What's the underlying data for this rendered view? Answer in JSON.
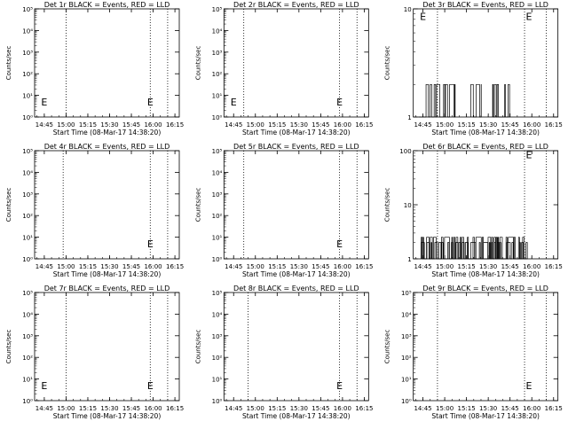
{
  "figure": {
    "background": "#ffffff",
    "foreground": "#000000",
    "event_color": "#000000",
    "lld_color": "#ff0000"
  },
  "chart_data": [
    {
      "type": "line",
      "title": "Det 1r BLACK = Events, RED = LLD",
      "xlabel": "Start Time (08-Mar-17 14:38:20)",
      "ylabel": "Counts/sec",
      "x_ticks": [
        "14:45",
        "15:00",
        "15:15",
        "15:30",
        "15:45",
        "16:00",
        "16:15"
      ],
      "y_scale": "log",
      "y_ticks": [
        {
          "value": 1,
          "label": "10⁰"
        },
        {
          "value": 10,
          "label": "10¹"
        },
        {
          "value": 100,
          "label": "10²"
        },
        {
          "value": 1000,
          "label": "10³"
        },
        {
          "value": 10000,
          "label": "10⁴"
        },
        {
          "value": 100000,
          "label": "10⁵"
        }
      ],
      "dotted_lines": [
        "15:00",
        "15:58",
        "16:10"
      ],
      "markers": [
        {
          "label": "E",
          "x": "14:45",
          "y": 5
        },
        {
          "label": "E",
          "x": "15:58",
          "y": 5
        }
      ],
      "series": []
    },
    {
      "type": "line",
      "title": "Det 2r BLACK = Events, RED = LLD",
      "xlabel": "Start Time (08-Mar-17 14:38:20)",
      "ylabel": "Counts/sec",
      "x_ticks": [
        "14:45",
        "15:00",
        "15:15",
        "15:30",
        "15:45",
        "16:00",
        "16:15"
      ],
      "y_scale": "log",
      "y_ticks": [
        {
          "value": 1,
          "label": "10⁰"
        },
        {
          "value": 10,
          "label": "10¹"
        },
        {
          "value": 100,
          "label": "10²"
        },
        {
          "value": 1000,
          "label": "10³"
        },
        {
          "value": 10000,
          "label": "10⁴"
        },
        {
          "value": 100000,
          "label": "10⁵"
        }
      ],
      "dotted_lines": [
        "14:52",
        "15:58",
        "16:10"
      ],
      "markers": [
        {
          "label": "E",
          "x": "14:45",
          "y": 5
        },
        {
          "label": "E",
          "x": "15:58",
          "y": 5
        }
      ],
      "series": []
    },
    {
      "type": "line",
      "title": "Det 3r BLACK = Events, RED = LLD",
      "xlabel": "Start Time (08-Mar-17 14:38:20)",
      "ylabel": "Counts/sec",
      "x_ticks": [
        "14:45",
        "15:00",
        "15:15",
        "15:30",
        "15:45",
        "16:00",
        "16:15"
      ],
      "y_scale": "log",
      "y_ticks": [
        {
          "value": 1,
          "label": "1"
        },
        {
          "value": 10,
          "label": "10"
        }
      ],
      "dotted_lines": [
        "14:55",
        "15:55",
        "16:10"
      ],
      "markers": [
        {
          "label": "E",
          "x": "14:45",
          "y": 8.5
        },
        {
          "label": "E",
          "x": "15:58",
          "y": 8.5
        }
      ],
      "series": [
        {
          "style": "noise",
          "range": [
            14.7,
            15.12
          ],
          "low": 1,
          "high": 2,
          "seed": 3
        },
        {
          "style": "noise",
          "range": [
            15.3,
            15.42
          ],
          "low": 1,
          "high": 2,
          "seed": 5
        },
        {
          "style": "noise",
          "range": [
            15.55,
            15.75
          ],
          "low": 1,
          "high": 2,
          "seed": 7
        }
      ]
    },
    {
      "type": "line",
      "title": "Det 4r BLACK = Events, RED = LLD",
      "xlabel": "Start Time (08-Mar-17 14:38:20)",
      "ylabel": "Counts/sec",
      "x_ticks": [
        "14:45",
        "15:00",
        "15:15",
        "15:30",
        "15:45",
        "16:00",
        "16:15"
      ],
      "y_scale": "log",
      "y_ticks": [
        {
          "value": 1,
          "label": "10⁰"
        },
        {
          "value": 10,
          "label": "10¹"
        },
        {
          "value": 100,
          "label": "10²"
        },
        {
          "value": 1000,
          "label": "10³"
        },
        {
          "value": 10000,
          "label": "10⁴"
        },
        {
          "value": 100000,
          "label": "10⁵"
        }
      ],
      "dotted_lines": [
        "14:58",
        "15:58",
        "16:10"
      ],
      "markers": [
        {
          "label": "E",
          "x": "15:58",
          "y": 5
        }
      ],
      "series": []
    },
    {
      "type": "line",
      "title": "Det 5r BLACK = Events, RED = LLD",
      "xlabel": "Start Time (08-Mar-17 14:38:20)",
      "ylabel": "Counts/sec",
      "x_ticks": [
        "14:45",
        "15:00",
        "15:15",
        "15:30",
        "15:45",
        "16:00",
        "16:15"
      ],
      "y_scale": "log",
      "y_ticks": [
        {
          "value": 1,
          "label": "10⁰"
        },
        {
          "value": 10,
          "label": "10¹"
        },
        {
          "value": 100,
          "label": "10²"
        },
        {
          "value": 1000,
          "label": "10³"
        },
        {
          "value": 10000,
          "label": "10⁴"
        },
        {
          "value": 100000,
          "label": "10⁵"
        }
      ],
      "dotted_lines": [
        "14:52",
        "15:58",
        "16:10"
      ],
      "markers": [
        {
          "label": "E",
          "x": "15:58",
          "y": 5
        }
      ],
      "series": []
    },
    {
      "type": "line",
      "title": "Det 6r BLACK = Events, RED = LLD",
      "xlabel": "Start Time (08-Mar-17 14:38:20)",
      "ylabel": "Counts/sec",
      "x_ticks": [
        "14:45",
        "15:00",
        "15:15",
        "15:30",
        "15:45",
        "16:00",
        "16:15"
      ],
      "y_scale": "log",
      "y_ticks": [
        {
          "value": 1,
          "label": "1"
        },
        {
          "value": 10,
          "label": "10"
        },
        {
          "value": 100,
          "label": "100"
        }
      ],
      "dotted_lines": [
        "14:55",
        "15:55",
        "16:10"
      ],
      "markers": [
        {
          "label": "E",
          "x": "15:58",
          "y": 85
        }
      ],
      "series": [
        {
          "style": "noise",
          "range": [
            14.73,
            15.95
          ],
          "low": 1,
          "high": 2.5,
          "seed": 11
        },
        {
          "style": "noise",
          "range": [
            14.73,
            15.95
          ],
          "low": 1,
          "high": 2,
          "seed": 13
        }
      ]
    },
    {
      "type": "line",
      "title": "Det 7r BLACK = Events, RED = LLD",
      "xlabel": "Start Time (08-Mar-17 14:38:20)",
      "ylabel": "Counts/sec",
      "x_ticks": [
        "14:45",
        "15:00",
        "15:15",
        "15:30",
        "15:45",
        "16:00",
        "16:15"
      ],
      "y_scale": "log",
      "y_ticks": [
        {
          "value": 1,
          "label": "10⁰"
        },
        {
          "value": 10,
          "label": "10¹"
        },
        {
          "value": 100,
          "label": "10²"
        },
        {
          "value": 1000,
          "label": "10³"
        },
        {
          "value": 10000,
          "label": "10⁴"
        },
        {
          "value": 100000,
          "label": "10⁵"
        }
      ],
      "dotted_lines": [
        "15:00",
        "15:58",
        "16:10"
      ],
      "markers": [
        {
          "label": "E",
          "x": "14:45",
          "y": 5
        },
        {
          "label": "E",
          "x": "15:58",
          "y": 5
        }
      ],
      "series": []
    },
    {
      "type": "line",
      "title": "Det 8r BLACK = Events, RED = LLD",
      "xlabel": "Start Time (08-Mar-17 14:38:20)",
      "ylabel": "Counts/sec",
      "x_ticks": [
        "14:45",
        "15:00",
        "15:15",
        "15:30",
        "15:45",
        "16:00",
        "16:15"
      ],
      "y_scale": "log",
      "y_ticks": [
        {
          "value": 1,
          "label": "10⁰"
        },
        {
          "value": 10,
          "label": "10¹"
        },
        {
          "value": 100,
          "label": "10²"
        },
        {
          "value": 1000,
          "label": "10³"
        },
        {
          "value": 10000,
          "label": "10⁴"
        },
        {
          "value": 100000,
          "label": "10⁵"
        }
      ],
      "dotted_lines": [
        "14:55",
        "15:58",
        "16:10"
      ],
      "markers": [
        {
          "label": "E",
          "x": "15:58",
          "y": 5
        }
      ],
      "series": []
    },
    {
      "type": "line",
      "title": "Det 9r BLACK = Events, RED = LLD",
      "xlabel": "Start Time (08-Mar-17 14:38:20)",
      "ylabel": "Counts/sec",
      "x_ticks": [
        "14:45",
        "15:00",
        "15:15",
        "15:30",
        "15:45",
        "16:00",
        "16:15"
      ],
      "y_scale": "log",
      "y_ticks": [
        {
          "value": 1,
          "label": "10⁰"
        },
        {
          "value": 10,
          "label": "10¹"
        },
        {
          "value": 100,
          "label": "10²"
        },
        {
          "value": 1000,
          "label": "10³"
        },
        {
          "value": 10000,
          "label": "10⁴"
        },
        {
          "value": 100000,
          "label": "10⁵"
        }
      ],
      "dotted_lines": [
        "14:55",
        "15:55",
        "16:10"
      ],
      "markers": [
        {
          "label": "E",
          "x": "15:58",
          "y": 5
        }
      ],
      "series": []
    }
  ]
}
